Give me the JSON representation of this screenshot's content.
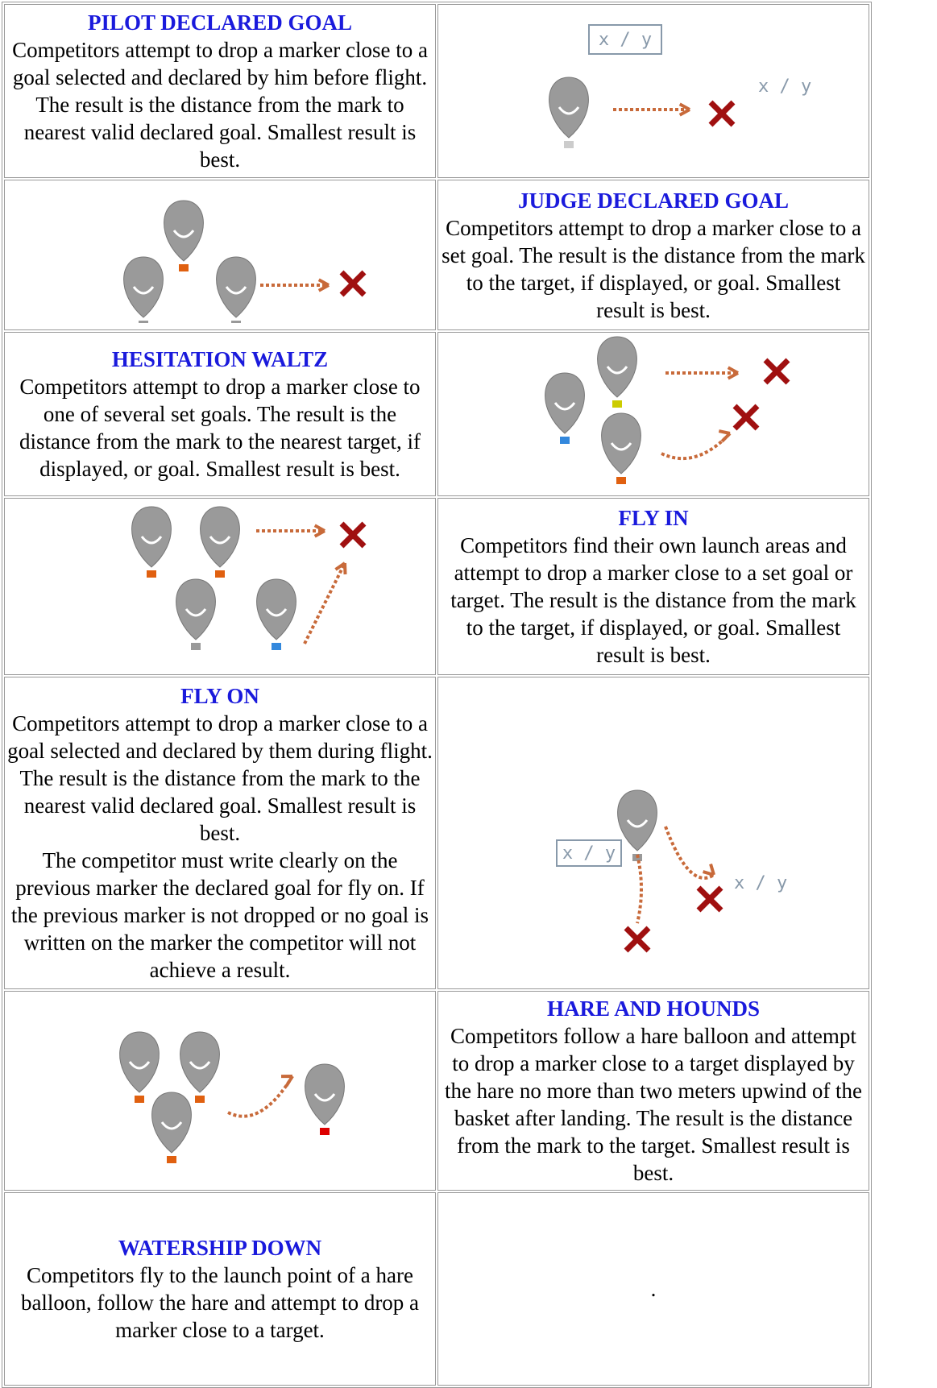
{
  "rows": [
    {
      "title": "PILOT DECLARED GOAL",
      "description": [
        "Competitors attempt to drop a marker close to a goal selected and declared by him before flight. The result is the distance from the mark to nearest valid declared goal. Smallest result is best."
      ],
      "image_labels": [
        "x / y",
        "x / y"
      ]
    },
    {
      "title": "JUDGE DECLARED GOAL",
      "description": [
        "Competitors attempt to drop a marker close to a set goal. The result is the distance from the mark to the target, if displayed, or goal. Smallest result is best."
      ]
    },
    {
      "title": "HESITATION WALTZ",
      "description": [
        "Competitors attempt to drop a marker close to one of several set goals. The result is the distance from the mark to the nearest target, if displayed, or goal. Smallest result is best."
      ]
    },
    {
      "title": "FLY IN",
      "description": [
        "Competitors find their own launch areas and attempt to drop a marker close to a set goal or target. The result is the distance from the mark to the target, if displayed, or goal. Smallest result is best."
      ]
    },
    {
      "title": "FLY ON",
      "description": [
        "Competitors attempt to drop a marker close to a goal selected and declared by them during flight. The result is the distance from the mark to the nearest valid declared goal. Smallest result is best.",
        "The competitor must write clearly on the previous marker the declared goal for fly on. If the previous marker is not dropped or no goal is written on the marker the competitor will not achieve a result."
      ],
      "image_labels": [
        "x / y",
        "x / y"
      ]
    },
    {
      "title": "HARE AND HOUNDS",
      "description": [
        "Competitors follow a hare balloon and attempt to drop a marker close to a target displayed by the hare no more than two meters upwind of the basket after landing. The result is the distance from the mark to the target. Smallest result is best."
      ]
    },
    {
      "title": "WATERSHIP DOWN",
      "description": [
        "Competitors fly to the launch point of a hare balloon, follow the hare and attempt to drop a marker close to a target."
      ],
      "image_text": "."
    }
  ]
}
